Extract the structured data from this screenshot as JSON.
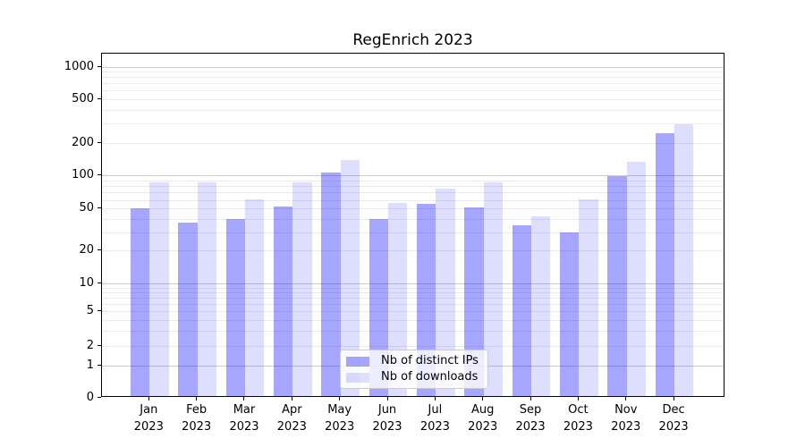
{
  "chart_data": {
    "type": "bar",
    "title": "RegEnrich 2023",
    "categories": [
      "Jan",
      "Feb",
      "Mar",
      "Apr",
      "May",
      "Jun",
      "Jul",
      "Aug",
      "Sep",
      "Oct",
      "Nov",
      "Dec"
    ],
    "category_year": "2023",
    "series": [
      {
        "name": "Nb of distinct IPs",
        "color": "rgba(0,0,255,0.35)",
        "values": [
          51,
          37,
          40,
          53,
          108,
          40,
          56,
          52,
          35,
          30,
          100,
          248
        ]
      },
      {
        "name": "Nb of downloads",
        "color": "rgba(0,0,255,0.13)",
        "values": [
          87,
          87,
          61,
          88,
          139,
          57,
          77,
          87,
          43,
          61,
          135,
          298
        ]
      }
    ],
    "xlabel": "",
    "ylabel": "",
    "y_axis": {
      "scale": "symlog",
      "ticks": [
        0,
        1,
        2,
        5,
        10,
        20,
        50,
        100,
        200,
        500,
        1000
      ],
      "ylim": [
        0,
        1300
      ]
    },
    "legend": {
      "position": "lower-center"
    },
    "grid": {
      "on": true,
      "major_color": "#cccccc",
      "minor_color": "#ebebeb"
    },
    "bar_colors_hex_on_white": {
      "distinct_ips": "#a6a6ff",
      "downloads": "#dedeff"
    }
  }
}
